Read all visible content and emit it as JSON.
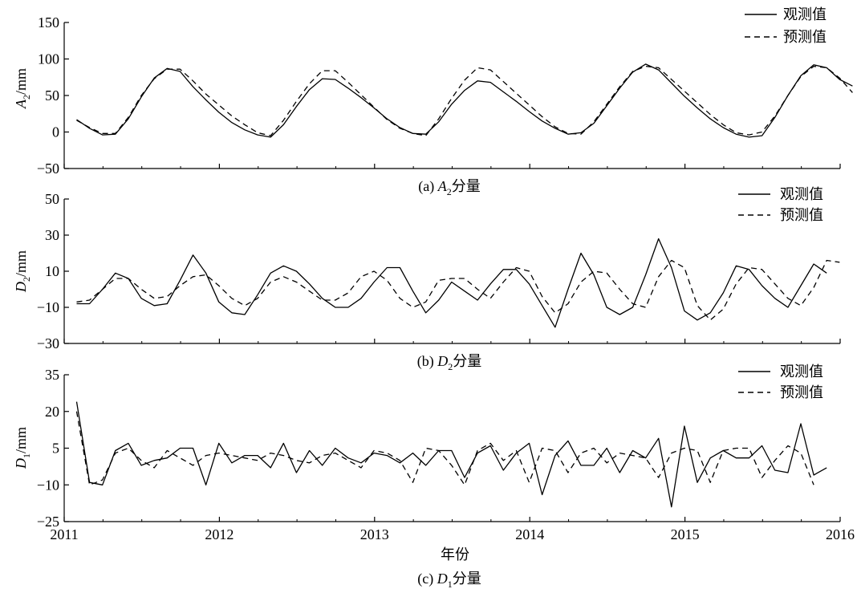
{
  "x_axis": {
    "label": "年份",
    "ticks": [
      "2011",
      "2012",
      "2013",
      "2014",
      "2015",
      "2016"
    ],
    "range": [
      2011,
      2016
    ]
  },
  "legend": {
    "observed": "观测值",
    "predicted": "预测值"
  },
  "chart_data": [
    {
      "type": "line",
      "panel": "(a)",
      "caption_prefix": "(a) ",
      "caption_var": "A",
      "caption_sub": "2",
      "caption_suffix": "分量",
      "ylabel_var": "A",
      "ylabel_sub": "2",
      "ylabel_unit": "/mm",
      "ylim": [
        -50,
        150
      ],
      "yticks": [
        -50,
        0,
        50,
        100,
        150
      ],
      "ytick_labels": [
        "−50",
        "0",
        "50",
        "100",
        "150"
      ],
      "series": [
        {
          "name": "观测值",
          "style": "solid",
          "x_start": 2011.08,
          "x_step": 0.08333,
          "values": [
            17,
            5,
            -4,
            -3,
            18,
            48,
            74,
            87,
            83,
            62,
            44,
            27,
            13,
            3,
            -4,
            -7,
            10,
            35,
            58,
            73,
            72,
            60,
            47,
            33,
            18,
            6,
            -2,
            -3,
            14,
            38,
            57,
            70,
            68,
            55,
            42,
            28,
            15,
            5,
            -3,
            -1,
            12,
            36,
            60,
            82,
            93,
            85,
            67,
            49,
            33,
            18,
            6,
            -3,
            -7,
            -5,
            20,
            50,
            77,
            92,
            88,
            72,
            63
          ]
        },
        {
          "name": "预测值",
          "style": "dashed",
          "x_start": 2011.08,
          "x_step": 0.08333,
          "values": [
            16,
            6,
            -2,
            -2,
            20,
            50,
            73,
            86,
            86,
            70,
            52,
            37,
            22,
            10,
            -1,
            -5,
            16,
            42,
            66,
            84,
            84,
            68,
            51,
            34,
            17,
            5,
            -2,
            -5,
            18,
            46,
            71,
            88,
            85,
            69,
            53,
            37,
            21,
            7,
            -2,
            -3,
            14,
            38,
            62,
            83,
            90,
            88,
            72,
            56,
            40,
            24,
            10,
            -1,
            -4,
            0,
            22,
            50,
            76,
            90,
            88,
            74,
            54
          ]
        }
      ]
    },
    {
      "type": "line",
      "panel": "(b)",
      "caption_prefix": "(b) ",
      "caption_var": "D",
      "caption_sub": "2",
      "caption_suffix": "分量",
      "ylabel_var": "D",
      "ylabel_sub": "2",
      "ylabel_unit": "/mm",
      "ylim": [
        -30,
        50
      ],
      "yticks": [
        -30,
        -10,
        10,
        30,
        50
      ],
      "ytick_labels": [
        "−30",
        "−10",
        "10",
        "30",
        "50"
      ],
      "series": [
        {
          "name": "观测值",
          "style": "solid",
          "x_start": 2011.08,
          "x_step": 0.08333,
          "values": [
            -8,
            -8,
            0,
            9,
            6,
            -5,
            -9,
            -8,
            5,
            19,
            9,
            -7,
            -13,
            -14,
            -3,
            9,
            13,
            10,
            3,
            -5,
            -10,
            -10,
            -5,
            4,
            12,
            12,
            -1,
            -13,
            -6,
            4,
            -1,
            -6,
            3,
            11,
            11,
            3,
            -9,
            -21,
            0,
            20,
            8,
            -10,
            -14,
            -10,
            8,
            28,
            12,
            -12,
            -17,
            -13,
            -2,
            13,
            11,
            2,
            -5,
            -10,
            2,
            14,
            9
          ]
        },
        {
          "name": "预测值",
          "style": "dashed",
          "x_start": 2011.08,
          "x_step": 0.08333,
          "values": [
            -7,
            -6,
            0,
            6,
            6,
            0,
            -5,
            -4,
            2,
            7,
            8,
            2,
            -5,
            -9,
            -5,
            4,
            7,
            4,
            -1,
            -6,
            -6,
            -2,
            7,
            10,
            5,
            -5,
            -10,
            -7,
            5,
            6,
            6,
            0,
            -5,
            4,
            12,
            10,
            -4,
            -13,
            -8,
            4,
            10,
            9,
            0,
            -8,
            -10,
            7,
            16,
            12,
            -9,
            -17,
            -11,
            3,
            12,
            11,
            3,
            -5,
            -9,
            1,
            16,
            15
          ]
        }
      ]
    },
    {
      "type": "line",
      "panel": "(c)",
      "caption_prefix": "(c) ",
      "caption_var": "D",
      "caption_sub": "1",
      "caption_suffix": "分量",
      "ylabel_var": "D",
      "ylabel_sub": "1",
      "ylabel_unit": "/mm",
      "ylim": [
        -25,
        35
      ],
      "yticks": [
        -25,
        -10,
        5,
        20,
        35
      ],
      "ytick_labels": [
        "−25",
        "−10",
        "5",
        "20",
        "35"
      ],
      "series": [
        {
          "name": "观测值",
          "style": "solid",
          "x_start": 2011.08,
          "x_step": 0.08333,
          "values": [
            24,
            -9,
            -10,
            4,
            7,
            -2,
            0,
            1,
            5,
            5,
            -10,
            7,
            -1,
            2,
            2,
            -3,
            7,
            -5,
            4,
            -2,
            5,
            1,
            -1,
            3,
            2,
            -1,
            3,
            -2,
            4,
            4,
            -7,
            3,
            6,
            -4,
            3,
            7,
            -14,
            2,
            8,
            -2,
            -2,
            5,
            -5,
            4,
            1,
            9,
            -19,
            14,
            -9,
            1,
            4,
            1,
            1,
            6,
            -4,
            -5,
            15,
            -6,
            -3
          ]
        },
        {
          "name": "预测值",
          "style": "dashed",
          "x_start": 2011.08,
          "x_step": 0.08333,
          "values": [
            20,
            -10,
            -8,
            3,
            5,
            0,
            -3,
            4,
            1,
            -2,
            2,
            3,
            2,
            1,
            0,
            3,
            2,
            0,
            -1,
            2,
            3,
            0,
            -3,
            4,
            3,
            0,
            -9,
            5,
            4,
            -2,
            -10,
            4,
            7,
            0,
            4,
            -9,
            5,
            4,
            -5,
            3,
            5,
            -1,
            3,
            2,
            1,
            -7,
            3,
            5,
            4,
            -9,
            4,
            5,
            5,
            -7,
            0,
            6,
            3,
            -10
          ]
        }
      ]
    }
  ]
}
